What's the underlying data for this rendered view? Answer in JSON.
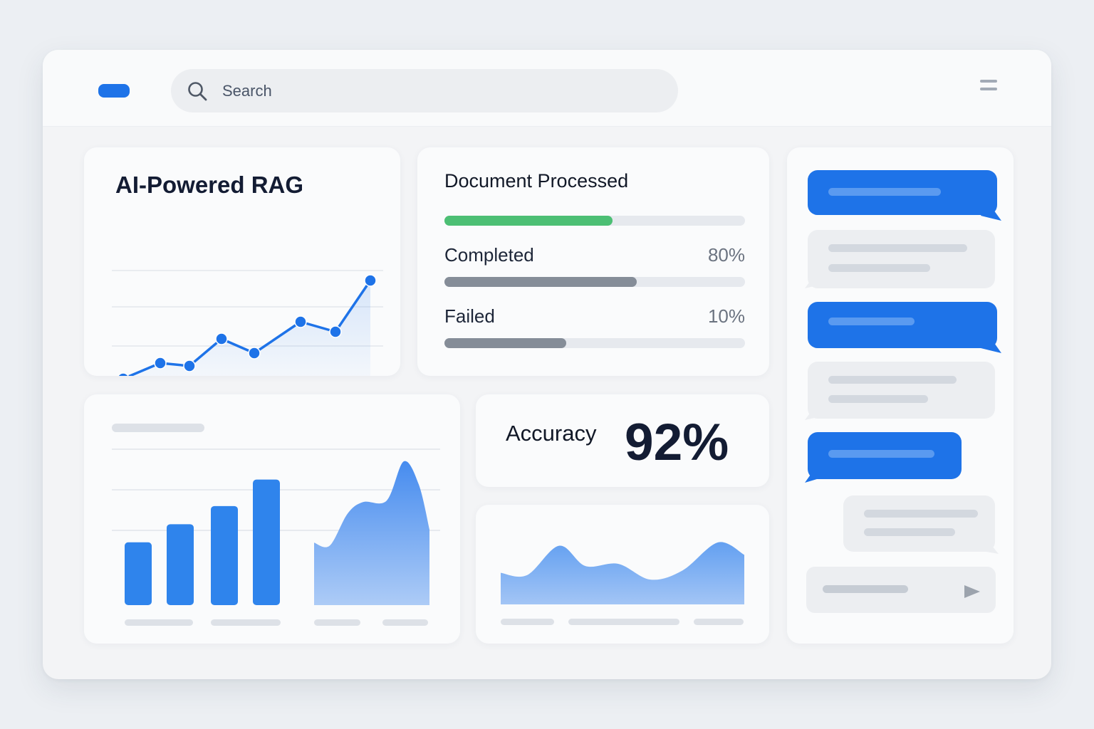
{
  "colors": {
    "accent": "#1e73e8",
    "success": "#4cbf74",
    "neutral_fill": "#858d98",
    "page_background": "#eceff3"
  },
  "search": {
    "placeholder": "Search"
  },
  "icons": {
    "search": "search-icon",
    "menu": "menu-icon",
    "send": "send-icon"
  },
  "rag_card": {
    "title": "AI-Powered RAG",
    "chart_data": {
      "type": "line",
      "x": [
        1,
        2,
        3,
        4,
        5,
        6,
        7,
        8
      ],
      "values": [
        10,
        21,
        19,
        38,
        28,
        50,
        43,
        79
      ],
      "ylim": [
        0,
        100
      ],
      "grid": true,
      "markers": true
    }
  },
  "documents_card": {
    "title": "Document Processed",
    "overall_progress": 0.56,
    "rows": [
      {
        "label": "Completed",
        "value": "80%",
        "progress": 0.64
      },
      {
        "label": "Failed",
        "value": "10%",
        "progress": 0.405
      }
    ]
  },
  "accuracy_card": {
    "label": "Accuracy",
    "value": "92%"
  },
  "bar_card": {
    "chart_data": {
      "type": "bar",
      "values": [
        45,
        58,
        71,
        90
      ],
      "ylim": [
        0,
        100
      ]
    },
    "area_chart_data": {
      "type": "area",
      "values": [
        43,
        41,
        63,
        71,
        72,
        99,
        83,
        52,
        0
      ],
      "ylim": [
        0,
        100
      ]
    }
  },
  "wave_card": {
    "chart_data": {
      "type": "area",
      "values": [
        28,
        26,
        52,
        34,
        36,
        22,
        30,
        55,
        44
      ],
      "ylim": [
        0,
        60
      ]
    }
  },
  "chat": {
    "messages": [
      {
        "sender": "user"
      },
      {
        "sender": "assistant"
      },
      {
        "sender": "user"
      },
      {
        "sender": "assistant"
      },
      {
        "sender": "user"
      },
      {
        "sender": "assistant"
      }
    ]
  }
}
